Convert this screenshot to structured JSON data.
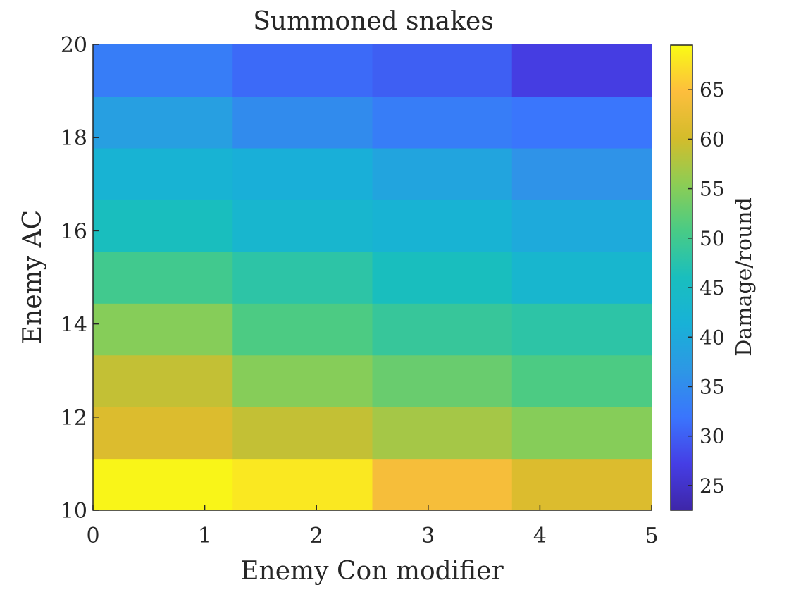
{
  "chart_data": {
    "type": "heatmap",
    "title": "Summoned snakes",
    "xlabel": "Enemy Con modifier",
    "ylabel": "Enemy AC",
    "colorbar_label": "Damage/round",
    "xlim": [
      0,
      5
    ],
    "ylim": [
      10,
      20
    ],
    "x_ticks": [
      "0",
      "1",
      "2",
      "3",
      "4",
      "5"
    ],
    "y_ticks": [
      "10",
      "12",
      "14",
      "16",
      "18",
      "20"
    ],
    "colorbar_ticks": [
      "25",
      "30",
      "35",
      "40",
      "45",
      "50",
      "55",
      "60",
      "65"
    ],
    "colorbar_range": [
      22.5,
      69.5
    ],
    "colormap": "parula",
    "columns": 4,
    "rows_bottom_to_top": [
      [
        69,
        68,
        64,
        61
      ],
      [
        61,
        59,
        57,
        55
      ],
      [
        59,
        55,
        53,
        51
      ],
      [
        55,
        51,
        49,
        48
      ],
      [
        50,
        48,
        46,
        43
      ],
      [
        46,
        43,
        42,
        40
      ],
      [
        42,
        41,
        39,
        36
      ],
      [
        38,
        35,
        33,
        32
      ],
      [
        33,
        31,
        30,
        27
      ]
    ],
    "grid": false
  }
}
